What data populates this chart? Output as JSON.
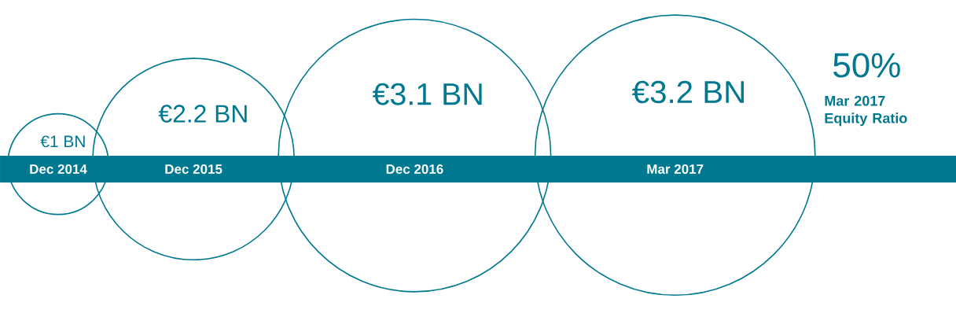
{
  "chart_data": {
    "type": "other",
    "categories": [
      "Dec 2014",
      "Dec 2015",
      "Dec 2016",
      "Mar 2017"
    ],
    "values": [
      1,
      2.2,
      3.1,
      3.2
    ],
    "value_labels": [
      "€1 BN",
      "€2.2 BN",
      "€3.1 BN",
      "€3.2 BN"
    ],
    "color": "#00788f",
    "annotations": [
      "50%",
      "Mar 2017 Equity Ratio"
    ]
  }
}
